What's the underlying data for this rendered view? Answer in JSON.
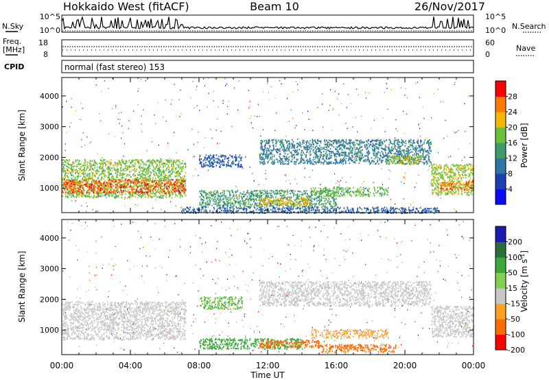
{
  "header": {
    "station": "Hokkaido West (fitACF)",
    "beam": "Beam 10",
    "date": "26/Nov/2017"
  },
  "noise_panel": {
    "left_label": "N.Sky",
    "right_label": "N.Search",
    "left_top_tick": "10^5",
    "left_bottom_tick": "10^0",
    "right_top_tick": "10^5",
    "right_bottom_tick": "10^0"
  },
  "freq_panel": {
    "left_label_line1": "Freq.",
    "left_label_line2": "[MHz]",
    "left_top_tick": "18",
    "left_bottom_tick": "8",
    "right_label": "Nave",
    "right_top_tick": "60",
    "right_bottom_tick": "0"
  },
  "cpid": {
    "label": "CPID",
    "value": "normal (fast stereo) 153"
  },
  "chart_data": [
    {
      "type": "heatmap",
      "title": "",
      "parameter": "Power",
      "ylabel": "Slant Range [km]",
      "xlabel": "",
      "yticks": [
        "1000",
        "2000",
        "3000",
        "4000"
      ],
      "ylim": [
        200,
        4600
      ],
      "xlim_hours": [
        0,
        24
      ],
      "colorbar_label": "Power [dB]",
      "colorbar_ticks": [
        "4",
        "8",
        "12",
        "16",
        "20",
        "24",
        "28"
      ],
      "colorbar_range": [
        0,
        32
      ],
      "colors": [
        "#0a0aff",
        "#1b3fb4",
        "#2f74a6",
        "#3e9c6b",
        "#6bc23a",
        "#f5b800",
        "#ff7a00",
        "#ff0000"
      ],
      "regions": [
        {
          "t": [
            0.0,
            7.2
          ],
          "r": [
            700,
            1950
          ],
          "v": 18
        },
        {
          "t": [
            0.0,
            7.2
          ],
          "r": [
            850,
            1300
          ],
          "v": 27
        },
        {
          "t": [
            8.0,
            16.0
          ],
          "r": [
            400,
            950
          ],
          "v": 14
        },
        {
          "t": [
            11.5,
            14.5
          ],
          "r": [
            450,
            700
          ],
          "v": 22
        },
        {
          "t": [
            14.5,
            19.0
          ],
          "r": [
            750,
            1050
          ],
          "v": 17
        },
        {
          "t": [
            8.0,
            10.5
          ],
          "r": [
            1700,
            2100
          ],
          "v": 8
        },
        {
          "t": [
            11.5,
            21.5
          ],
          "r": [
            1800,
            2600
          ],
          "v": 11
        },
        {
          "t": [
            19.0,
            21.0
          ],
          "r": [
            1800,
            2100
          ],
          "v": 20
        },
        {
          "t": [
            21.5,
            24.0
          ],
          "r": [
            800,
            1800
          ],
          "v": 19
        },
        {
          "t": [
            22.0,
            24.0
          ],
          "r": [
            950,
            1250
          ],
          "v": 26
        },
        {
          "t": [
            7.0,
            22.0
          ],
          "r": [
            200,
            400
          ],
          "v": 9
        }
      ]
    },
    {
      "type": "heatmap",
      "title": "",
      "parameter": "Velocity",
      "ylabel": "Slant Range [km]",
      "xlabel": "Time UT",
      "xticks": [
        "00:00",
        "04:00",
        "08:00",
        "12:00",
        "16:00",
        "20:00",
        "00:00"
      ],
      "yticks": [
        "1000",
        "2000",
        "3000",
        "4000"
      ],
      "ylim": [
        200,
        4600
      ],
      "xlim_hours": [
        0,
        24
      ],
      "colorbar_label": "Velocity [m s^-1]",
      "colorbar_ticks": [
        "200",
        "100",
        "50",
        "15",
        "-15",
        "-50",
        "-100",
        "-200"
      ],
      "colors": [
        "#1a1ab4",
        "#2a6e3a",
        "#3ca83c",
        "#7fd14f",
        "#c8c8c8",
        "#ffa020",
        "#ff6a00",
        "#ff0000"
      ],
      "regions": [
        {
          "t": [
            0.0,
            7.2
          ],
          "r": [
            700,
            1950
          ],
          "v": 0
        },
        {
          "t": [
            8.0,
            14.0
          ],
          "r": [
            400,
            750
          ],
          "v": 40
        },
        {
          "t": [
            11.5,
            15.0
          ],
          "r": [
            450,
            700
          ],
          "v": -70
        },
        {
          "t": [
            15.0,
            19.5
          ],
          "r": [
            300,
            550
          ],
          "v": -60
        },
        {
          "t": [
            14.5,
            19.0
          ],
          "r": [
            750,
            1050
          ],
          "v": -20
        },
        {
          "t": [
            8.0,
            10.5
          ],
          "r": [
            1700,
            2100
          ],
          "v": 30
        },
        {
          "t": [
            11.5,
            21.5
          ],
          "r": [
            1800,
            2600
          ],
          "v": 0
        },
        {
          "t": [
            21.5,
            24.0
          ],
          "r": [
            800,
            1800
          ],
          "v": 0
        }
      ]
    }
  ]
}
